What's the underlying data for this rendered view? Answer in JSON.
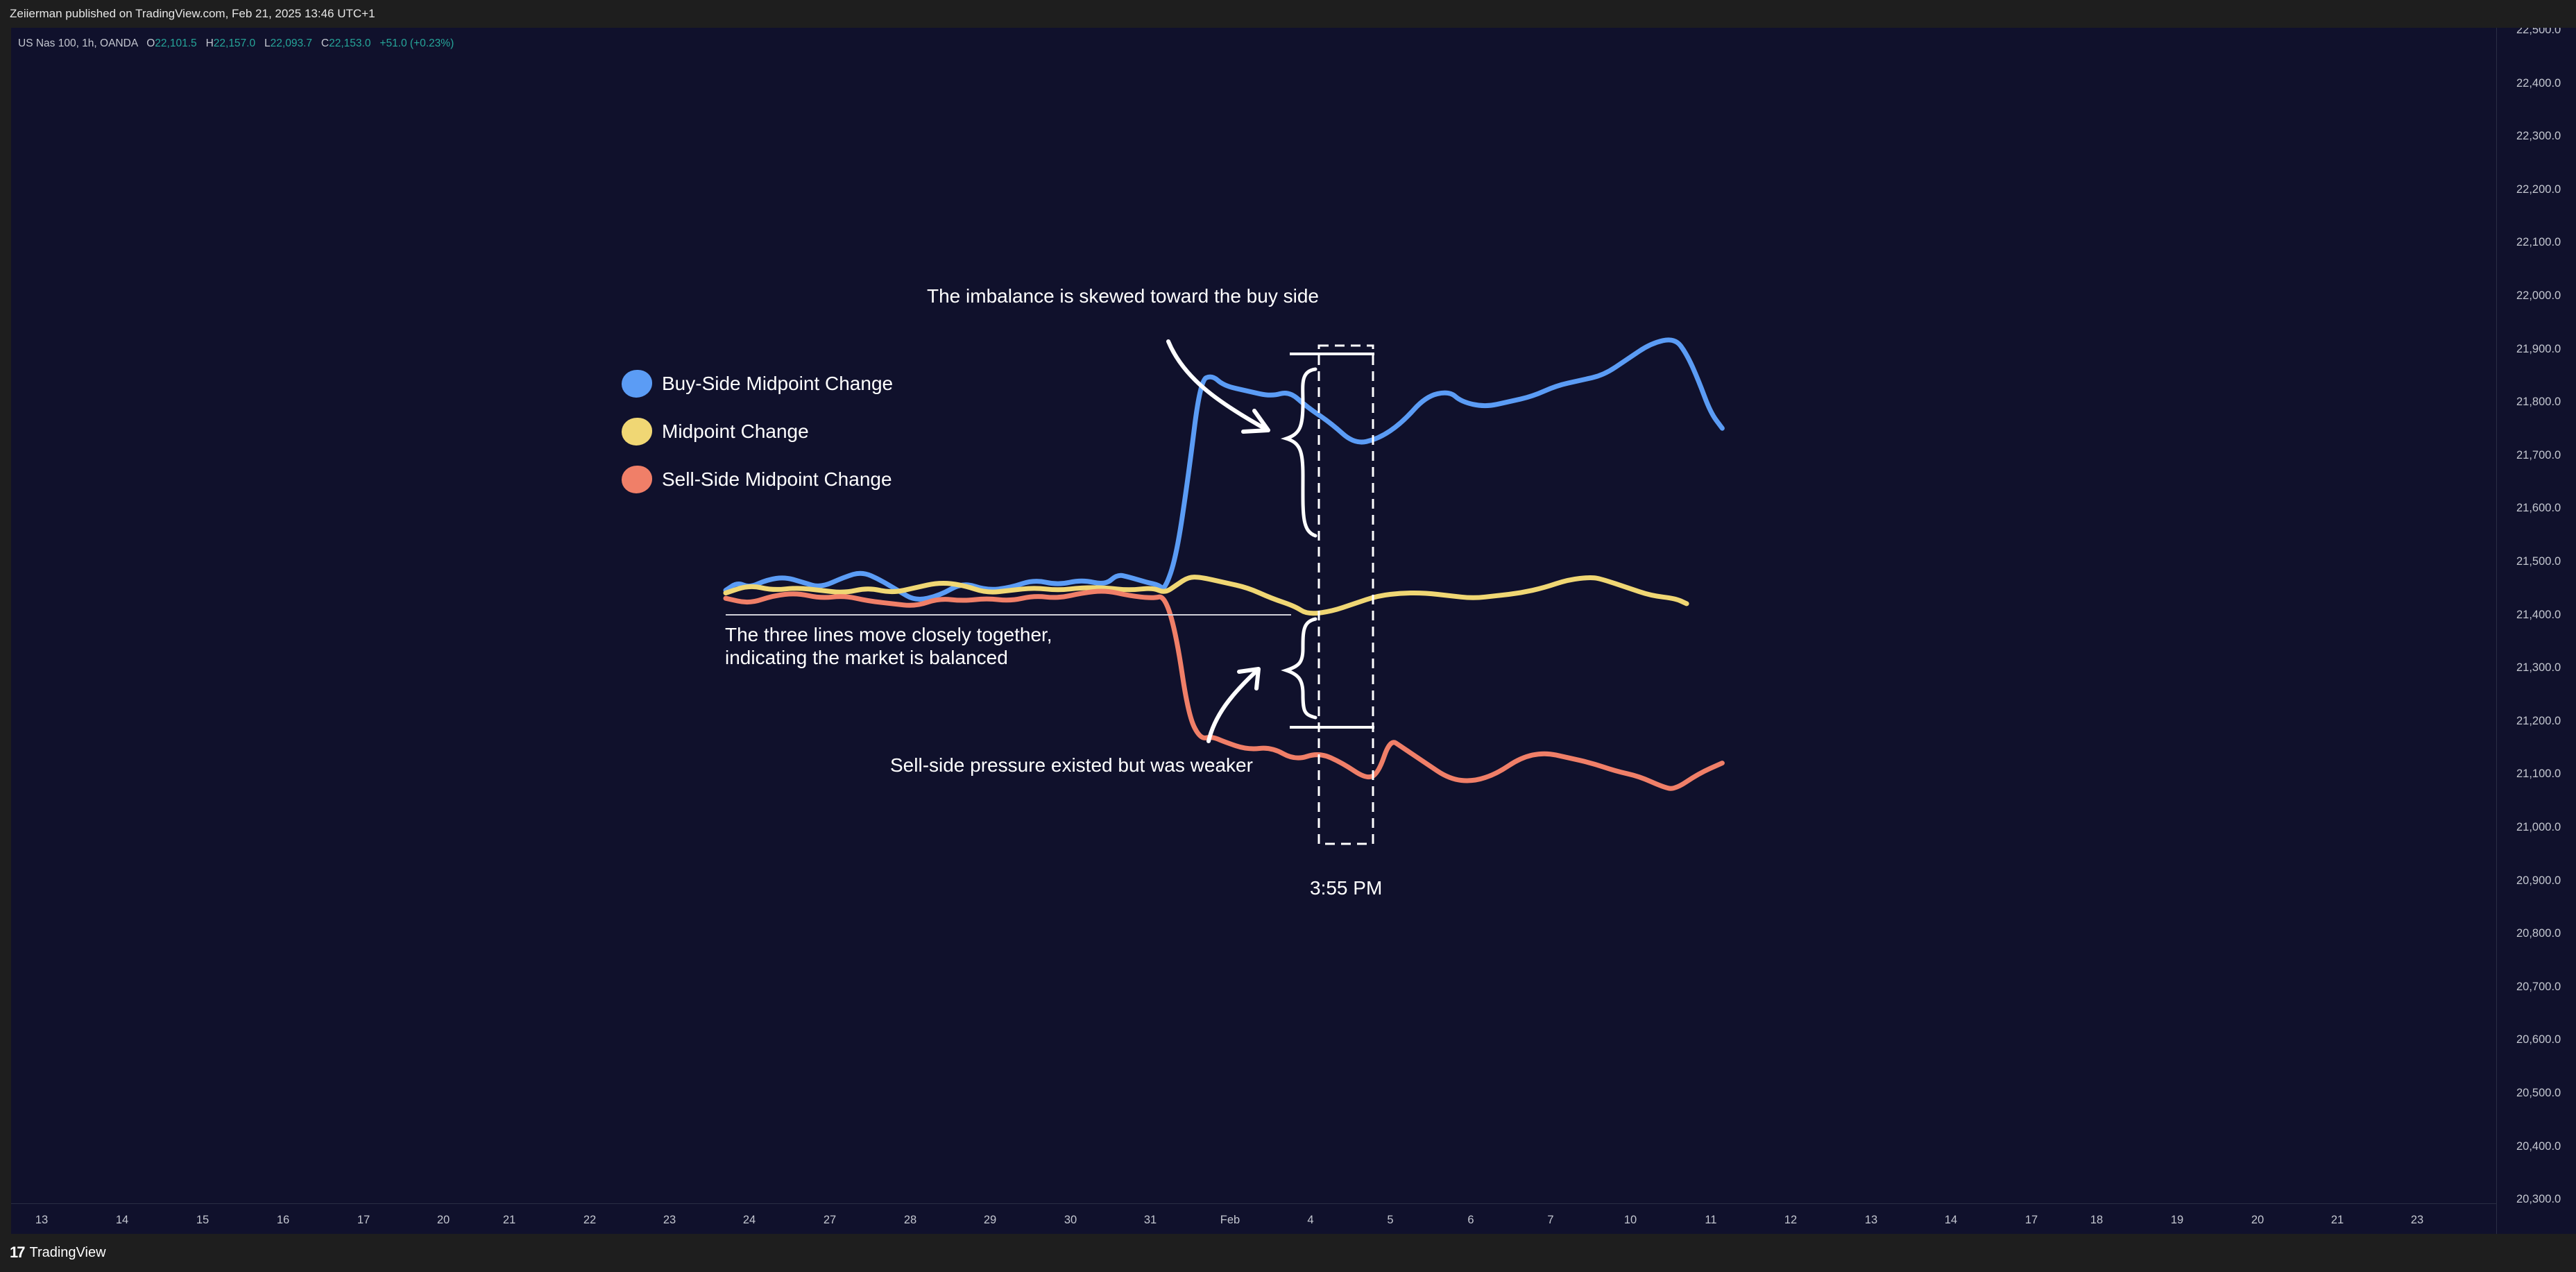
{
  "header": {
    "published_text": "Zeiierman published on TradingView.com, Feb 21, 2025 13:46 UTC+1"
  },
  "legend_line": {
    "symbol": "US Nas 100, 1h, OANDA",
    "open_label": "O",
    "open_value": "22,101.5",
    "high_label": "H",
    "high_value": "22,157.0",
    "low_label": "L",
    "low_value": "22,093.7",
    "close_label": "C",
    "close_value": "22,153.0",
    "change": "+51.0 (+0.23%)",
    "value_color": "#26a69a"
  },
  "price_axis": {
    "labels": [
      "22,500.0",
      "22,400.0",
      "22,300.0",
      "22,200.0",
      "22,100.0",
      "22,000.0",
      "21,900.0",
      "21,800.0",
      "21,700.0",
      "21,600.0",
      "21,500.0",
      "21,400.0",
      "21,300.0",
      "21,200.0",
      "21,100.0",
      "21,000.0",
      "20,900.0",
      "20,800.0",
      "20,700.0",
      "20,600.0",
      "20,500.0",
      "20,400.0",
      "20,300.0"
    ]
  },
  "time_axis": {
    "labels": [
      "13",
      "14",
      "15",
      "16",
      "17",
      "20",
      "21",
      "22",
      "23",
      "24",
      "27",
      "28",
      "29",
      "30",
      "31",
      "Feb",
      "4",
      "5",
      "6",
      "7",
      "10",
      "11",
      "12",
      "13",
      "14",
      "17",
      "18",
      "19",
      "20",
      "21",
      "23"
    ]
  },
  "annotations": {
    "buy_side_note": "The imbalance is skewed toward the buy side",
    "balanced_note_line1": "The three lines move closely together,",
    "balanced_note_line2": "indicating the market is balanced",
    "sell_side_note": "Sell-side pressure existed but was weaker",
    "time_marker": "3:55 PM"
  },
  "series_legend": [
    {
      "label": "Buy-Side Midpoint Change",
      "color": "#5b9cf5"
    },
    {
      "label": "Midpoint Change",
      "color": "#f0d774"
    },
    {
      "label": "Sell-Side Midpoint Change",
      "color": "#f07f68"
    }
  ],
  "footer": {
    "logo_mark": "17",
    "logo_text": "TradingView"
  },
  "chart_data": {
    "type": "line",
    "x_unit": "normalized",
    "ylim": [
      20300,
      22550
    ],
    "series": [
      {
        "name": "Buy-Side Midpoint Change",
        "color": "#5b9cf5",
        "points": [
          [
            0,
            21485
          ],
          [
            0.01,
            21500
          ],
          [
            0.02,
            21490
          ],
          [
            0.035,
            21505
          ],
          [
            0.05,
            21510
          ],
          [
            0.065,
            21500
          ],
          [
            0.08,
            21490
          ],
          [
            0.1,
            21510
          ],
          [
            0.115,
            21520
          ],
          [
            0.13,
            21505
          ],
          [
            0.145,
            21485
          ],
          [
            0.16,
            21465
          ],
          [
            0.18,
            21475
          ],
          [
            0.2,
            21500
          ],
          [
            0.22,
            21485
          ],
          [
            0.24,
            21490
          ],
          [
            0.26,
            21505
          ],
          [
            0.28,
            21495
          ],
          [
            0.3,
            21505
          ],
          [
            0.32,
            21495
          ],
          [
            0.33,
            21515
          ],
          [
            0.34,
            21510
          ],
          [
            0.355,
            21500
          ],
          [
            0.365,
            21495
          ],
          [
            0.37,
            21485
          ],
          [
            0.38,
            21550
          ],
          [
            0.39,
            21700
          ],
          [
            0.4,
            21880
          ],
          [
            0.41,
            21890
          ],
          [
            0.42,
            21870
          ],
          [
            0.44,
            21860
          ],
          [
            0.46,
            21850
          ],
          [
            0.475,
            21860
          ],
          [
            0.49,
            21830
          ],
          [
            0.51,
            21800
          ],
          [
            0.53,
            21760
          ],
          [
            0.55,
            21770
          ],
          [
            0.57,
            21800
          ],
          [
            0.59,
            21850
          ],
          [
            0.61,
            21860
          ],
          [
            0.62,
            21840
          ],
          [
            0.64,
            21830
          ],
          [
            0.66,
            21840
          ],
          [
            0.68,
            21850
          ],
          [
            0.7,
            21870
          ],
          [
            0.72,
            21880
          ],
          [
            0.74,
            21890
          ],
          [
            0.76,
            21920
          ],
          [
            0.78,
            21950
          ],
          [
            0.8,
            21960
          ],
          [
            0.81,
            21930
          ],
          [
            0.82,
            21880
          ],
          [
            0.83,
            21820
          ],
          [
            0.84,
            21790
          ]
        ]
      },
      {
        "name": "Midpoint Change",
        "color": "#f0d774",
        "points": [
          [
            0,
            21480
          ],
          [
            0.02,
            21495
          ],
          [
            0.04,
            21485
          ],
          [
            0.06,
            21490
          ],
          [
            0.08,
            21485
          ],
          [
            0.1,
            21480
          ],
          [
            0.12,
            21490
          ],
          [
            0.14,
            21480
          ],
          [
            0.16,
            21490
          ],
          [
            0.18,
            21500
          ],
          [
            0.2,
            21495
          ],
          [
            0.22,
            21480
          ],
          [
            0.24,
            21485
          ],
          [
            0.26,
            21490
          ],
          [
            0.28,
            21485
          ],
          [
            0.3,
            21490
          ],
          [
            0.32,
            21490
          ],
          [
            0.34,
            21485
          ],
          [
            0.36,
            21490
          ],
          [
            0.37,
            21480
          ],
          [
            0.38,
            21495
          ],
          [
            0.39,
            21510
          ],
          [
            0.4,
            21510
          ],
          [
            0.42,
            21500
          ],
          [
            0.44,
            21490
          ],
          [
            0.46,
            21470
          ],
          [
            0.48,
            21455
          ],
          [
            0.49,
            21440
          ],
          [
            0.51,
            21445
          ],
          [
            0.53,
            21460
          ],
          [
            0.55,
            21475
          ],
          [
            0.57,
            21480
          ],
          [
            0.59,
            21480
          ],
          [
            0.61,
            21475
          ],
          [
            0.63,
            21470
          ],
          [
            0.65,
            21475
          ],
          [
            0.67,
            21480
          ],
          [
            0.69,
            21490
          ],
          [
            0.71,
            21505
          ],
          [
            0.73,
            21510
          ],
          [
            0.74,
            21505
          ],
          [
            0.76,
            21490
          ],
          [
            0.78,
            21475
          ],
          [
            0.8,
            21470
          ],
          [
            0.81,
            21460
          ]
        ]
      },
      {
        "name": "Sell-Side Midpoint Change",
        "color": "#f07f68",
        "points": [
          [
            0,
            21470
          ],
          [
            0.02,
            21460
          ],
          [
            0.04,
            21475
          ],
          [
            0.06,
            21480
          ],
          [
            0.08,
            21470
          ],
          [
            0.1,
            21475
          ],
          [
            0.12,
            21465
          ],
          [
            0.14,
            21460
          ],
          [
            0.16,
            21455
          ],
          [
            0.18,
            21470
          ],
          [
            0.2,
            21465
          ],
          [
            0.22,
            21470
          ],
          [
            0.24,
            21465
          ],
          [
            0.26,
            21475
          ],
          [
            0.28,
            21470
          ],
          [
            0.3,
            21480
          ],
          [
            0.32,
            21485
          ],
          [
            0.34,
            21475
          ],
          [
            0.36,
            21470
          ],
          [
            0.37,
            21475
          ],
          [
            0.38,
            21400
          ],
          [
            0.39,
            21250
          ],
          [
            0.4,
            21205
          ],
          [
            0.41,
            21210
          ],
          [
            0.42,
            21200
          ],
          [
            0.44,
            21185
          ],
          [
            0.46,
            21190
          ],
          [
            0.48,
            21165
          ],
          [
            0.5,
            21180
          ],
          [
            0.52,
            21160
          ],
          [
            0.54,
            21130
          ],
          [
            0.55,
            21140
          ],
          [
            0.56,
            21205
          ],
          [
            0.57,
            21190
          ],
          [
            0.59,
            21160
          ],
          [
            0.61,
            21130
          ],
          [
            0.63,
            21125
          ],
          [
            0.65,
            21140
          ],
          [
            0.67,
            21170
          ],
          [
            0.69,
            21180
          ],
          [
            0.71,
            21170
          ],
          [
            0.73,
            21160
          ],
          [
            0.75,
            21145
          ],
          [
            0.77,
            21135
          ],
          [
            0.79,
            21115
          ],
          [
            0.8,
            21110
          ],
          [
            0.82,
            21140
          ],
          [
            0.84,
            21160
          ]
        ]
      }
    ]
  }
}
